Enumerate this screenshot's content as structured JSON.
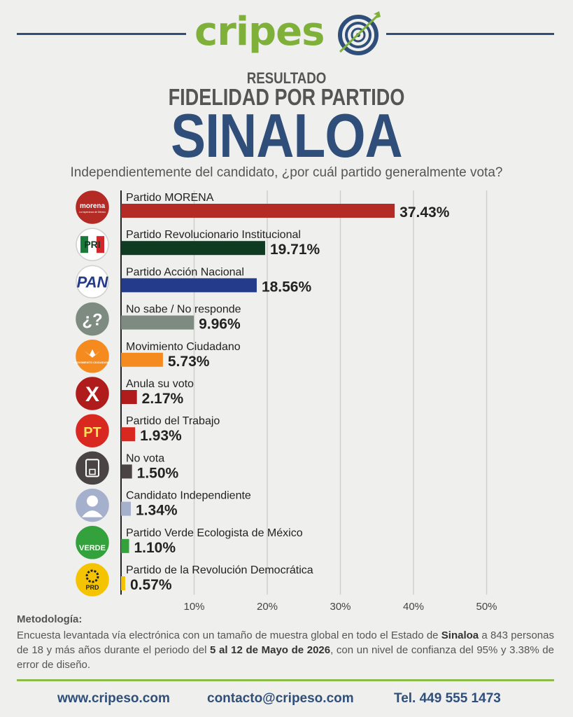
{
  "brand": {
    "logo_text_green": "cripes",
    "logo_text_blue": "o",
    "colors": {
      "green": "#7fb13a",
      "blue": "#2f4f7a"
    }
  },
  "header": {
    "kicker": "RESULTADO",
    "subtitle": "FIDELIDAD POR PARTIDO",
    "title": "SINALOA",
    "question": "Independientemente del candidato, ¿por cuál partido generalmente vota?"
  },
  "chart_data": {
    "type": "bar",
    "orientation": "horizontal",
    "categories": [
      "Partido MORENA",
      "Partido Revolucionario Institucional",
      "Partido Acción Nacional",
      "No sabe / No responde",
      "Movimiento Ciudadano",
      "Anula su voto",
      "Partido del Trabajo",
      "No vota",
      "Candidato Independiente",
      "Partido Verde Ecologista de México",
      "Partido de la Revolución Democrática"
    ],
    "values": [
      37.43,
      19.71,
      18.56,
      9.96,
      5.73,
      2.17,
      1.93,
      1.5,
      1.34,
      1.1,
      0.57
    ],
    "value_labels": [
      "37.43%",
      "19.71%",
      "18.56%",
      "9.96%",
      "5.73%",
      "2.17%",
      "1.93%",
      "1.50%",
      "1.34%",
      "1.10%",
      "0.57%"
    ],
    "colors": [
      "#b42a24",
      "#0f3b22",
      "#243a8a",
      "#7d8b80",
      "#f58a1f",
      "#b01b1b",
      "#d9281f",
      "#4a4444",
      "#a5b0cc",
      "#33a13c",
      "#f5c400"
    ],
    "icons": [
      {
        "name": "morena-logo-icon",
        "label": "morena",
        "sub": "La esperanza de México",
        "bg": "#b42a24",
        "fg": "#ffffff"
      },
      {
        "name": "pri-logo-icon",
        "label": "PRI",
        "bg": "#ffffff",
        "fg": "#0f3b22"
      },
      {
        "name": "pan-logo-icon",
        "label": "PAN",
        "bg": "#ffffff",
        "fg": "#243a8a"
      },
      {
        "name": "question-marks-icon",
        "label": "¿?",
        "bg": "#7d8b80",
        "fg": "#ffffff"
      },
      {
        "name": "mc-eagle-logo-icon",
        "label": "MOVIMIENTO CIUDADANO",
        "bg": "#f58a1f",
        "fg": "#ffffff"
      },
      {
        "name": "x-cross-icon",
        "label": "X",
        "bg": "#b01b1b",
        "fg": "#ffffff"
      },
      {
        "name": "pt-star-logo-icon",
        "label": "PT",
        "bg": "#d9281f",
        "fg": "#ffe15a"
      },
      {
        "name": "ballot-box-icon",
        "label": "",
        "bg": "#4a4444",
        "fg": "#ffffff"
      },
      {
        "name": "person-silhouette-icon",
        "label": "",
        "bg": "#a5b0cc",
        "fg": "#ffffff"
      },
      {
        "name": "verde-toucan-logo-icon",
        "label": "VERDE",
        "bg": "#33a13c",
        "fg": "#ffffff"
      },
      {
        "name": "prd-sun-logo-icon",
        "label": "PRD",
        "bg": "#f5c400",
        "fg": "#222222"
      }
    ],
    "x_ticks": [
      10,
      20,
      30,
      40,
      50
    ],
    "x_tick_labels": [
      "10%",
      "20%",
      "30%",
      "40%",
      "50%"
    ],
    "xlim": [
      0,
      50
    ],
    "grid": true
  },
  "methodology": {
    "title": "Metodología:",
    "part1": "Encuesta levantada vía electrónica con un tamaño de muestra global en todo el Estado de ",
    "bold1": "Sinaloa",
    "part2": " a 843 personas de 18 y más años durante el periodo del ",
    "bold2": "5 al 12 de Mayo de 2026",
    "part3": ", con un nivel de confianza del 95% y 3.38% de error de diseño."
  },
  "footer": {
    "website": "www.cripeso.com",
    "email": "contacto@cripeso.com",
    "phone": "Tel. 449 555 1473"
  }
}
